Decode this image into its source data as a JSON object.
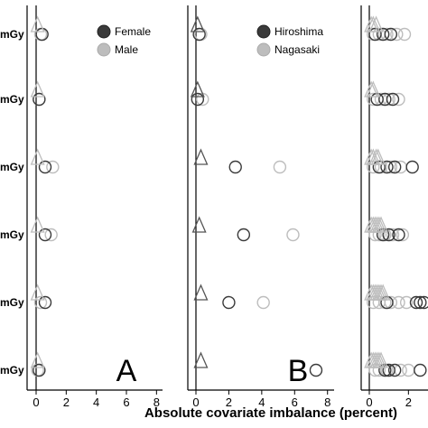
{
  "chart_data": {
    "type": "scatter",
    "xlabel": "Absolute covariate imbalance (percent)",
    "row_labels": [
      "mGy",
      "mGy",
      "mGy",
      "mGy",
      "mGy",
      "mGy"
    ],
    "colors": {
      "dark": "#3a3a3a",
      "light": "#bdbdbd",
      "axis": "#000000"
    },
    "panels": [
      {
        "letter": "A",
        "xlim": [
          -0.6,
          8.4
        ],
        "xticks": [
          "0",
          "2",
          "4",
          "6",
          "8"
        ],
        "xtick_values": [
          0,
          2,
          4,
          6,
          8
        ],
        "legend": [
          {
            "label": "Female",
            "series": "dark"
          },
          {
            "label": "Male",
            "series": "light"
          }
        ],
        "triangles": [
          {
            "row": 0,
            "x": [
              0.1
            ]
          },
          {
            "row": 1,
            "x": [
              0.1
            ]
          },
          {
            "row": 2,
            "x": [
              0.1
            ]
          },
          {
            "row": 3,
            "x": [
              0.1
            ]
          },
          {
            "row": 4,
            "x": [
              0.1
            ]
          },
          {
            "row": 5,
            "x": [
              0.1
            ]
          }
        ],
        "circles": [
          {
            "row": 0,
            "dark": [
              0.4
            ],
            "light": [
              0.3
            ]
          },
          {
            "row": 1,
            "dark": [
              0.2
            ],
            "light": [
              0.2
            ]
          },
          {
            "row": 2,
            "dark": [
              0.6
            ],
            "light": [
              1.1
            ]
          },
          {
            "row": 3,
            "dark": [
              0.6
            ],
            "light": [
              1.0
            ]
          },
          {
            "row": 4,
            "dark": [
              0.6
            ],
            "light": [
              0.3
            ]
          },
          {
            "row": 5,
            "dark": [
              0.2
            ],
            "light": [
              0.1
            ]
          }
        ]
      },
      {
        "letter": "B",
        "xlim": [
          -0.6,
          8.4
        ],
        "xticks": [
          "0",
          "2",
          "4",
          "6",
          "8"
        ],
        "xtick_values": [
          0,
          2,
          4,
          6,
          8
        ],
        "legend": [
          {
            "label": "Hiroshima",
            "series": "dark"
          },
          {
            "label": "Nagasaki",
            "series": "light"
          }
        ],
        "triangles": [
          {
            "row": 0,
            "x": [
              0.1
            ]
          },
          {
            "row": 1,
            "x": [
              0.1
            ]
          },
          {
            "row": 2,
            "x": [
              0.3
            ]
          },
          {
            "row": 3,
            "x": [
              0.2
            ]
          },
          {
            "row": 4,
            "x": [
              0.3
            ]
          },
          {
            "row": 5,
            "x": [
              0.3
            ]
          }
        ],
        "circles": [
          {
            "row": 0,
            "dark": [
              0.2
            ],
            "light": [
              0.3
            ]
          },
          {
            "row": 1,
            "dark": [
              0.1
            ],
            "light": [
              0.4
            ]
          },
          {
            "row": 2,
            "dark": [
              2.4
            ],
            "light": [
              5.1
            ]
          },
          {
            "row": 3,
            "dark": [
              2.9
            ],
            "light": [
              5.9
            ]
          },
          {
            "row": 4,
            "dark": [
              2.0
            ],
            "light": [
              4.1
            ]
          },
          {
            "row": 5,
            "dark": [
              7.3
            ],
            "light": []
          }
        ]
      },
      {
        "letter": "",
        "xlim": [
          -0.35,
          3.0
        ],
        "xticks": [
          "0",
          "2"
        ],
        "xtick_values": [
          0,
          2
        ],
        "legend": [],
        "triangles": [
          {
            "row": 0,
            "x": [
              0.1,
              0.2,
              0.35
            ]
          },
          {
            "row": 1,
            "x": [
              0.1,
              0.2
            ]
          },
          {
            "row": 2,
            "x": [
              0.1,
              0.2,
              0.35,
              0.45
            ]
          },
          {
            "row": 3,
            "x": [
              0.1,
              0.2,
              0.3,
              0.4,
              0.5,
              0.6
            ]
          },
          {
            "row": 4,
            "x": [
              0.1,
              0.2,
              0.3,
              0.4,
              0.5,
              0.6,
              0.7
            ]
          },
          {
            "row": 5,
            "x": [
              0.1,
              0.2,
              0.3,
              0.4,
              0.5,
              0.6
            ]
          }
        ],
        "circles": [
          {
            "row": 0,
            "dark": [
              0.3,
              0.7,
              1.1
            ],
            "light": [
              0.2,
              0.5,
              0.9,
              1.4,
              1.8
            ]
          },
          {
            "row": 1,
            "dark": [
              0.4,
              0.8,
              1.2
            ],
            "light": [
              0.2,
              0.6,
              1.0,
              1.5
            ]
          },
          {
            "row": 2,
            "dark": [
              0.5,
              0.9,
              1.3,
              2.2
            ],
            "light": [
              0.2,
              0.6,
              1.1,
              1.6
            ]
          },
          {
            "row": 3,
            "dark": [
              0.7,
              1.0,
              1.5
            ],
            "light": [
              0.3,
              0.5,
              0.8,
              1.2,
              1.7
            ]
          },
          {
            "row": 4,
            "dark": [
              0.9,
              2.4,
              2.6,
              2.8
            ],
            "light": [
              0.2,
              0.5,
              0.8,
              1.1,
              1.5,
              1.9
            ]
          },
          {
            "row": 5,
            "dark": [
              0.8,
              1.0,
              1.3,
              2.6
            ],
            "light": [
              0.3,
              0.5,
              0.9,
              1.6,
              2.0
            ]
          }
        ]
      }
    ]
  }
}
